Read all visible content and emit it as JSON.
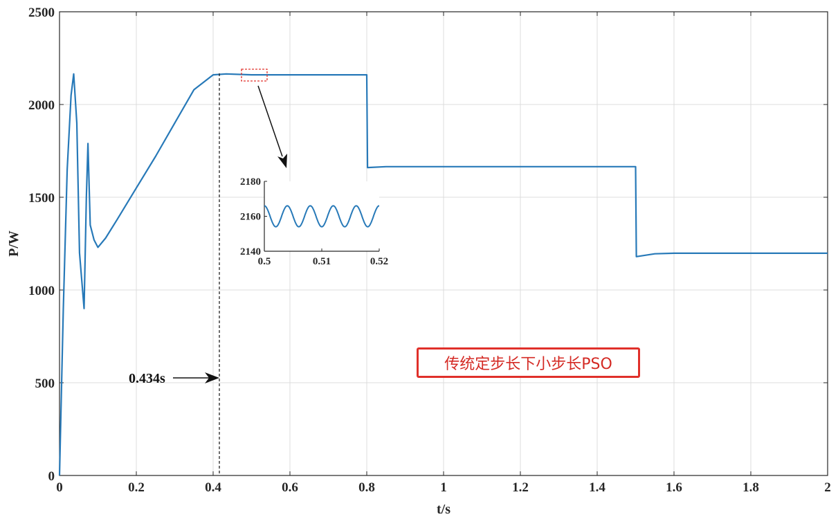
{
  "chart_data": {
    "type": "line",
    "xlabel": "t/s",
    "ylabel": "P/W",
    "xlim": [
      0,
      2
    ],
    "ylim": [
      0,
      2500
    ],
    "xticks": [
      "0",
      "0.2",
      "0.4",
      "0.6",
      "0.8",
      "1",
      "1.2",
      "1.4",
      "1.6",
      "1.8",
      "2"
    ],
    "yticks": [
      "0",
      "500",
      "1000",
      "1500",
      "2000",
      "2500"
    ],
    "grid": true,
    "series_color": "#2779b8",
    "series": [
      {
        "name": "传统定步长下小步长PSO",
        "x": [
          0,
          0.01,
          0.02,
          0.03,
          0.037,
          0.045,
          0.052,
          0.058,
          0.064,
          0.07,
          0.074,
          0.08,
          0.09,
          0.1,
          0.12,
          0.15,
          0.2,
          0.25,
          0.3,
          0.35,
          0.4,
          0.434,
          0.5,
          0.6,
          0.7,
          0.8,
          0.802,
          0.85,
          1.0,
          1.2,
          1.4,
          1.5,
          1.502,
          1.55,
          1.6,
          1.8,
          2.0
        ],
        "y": [
          0,
          900,
          1650,
          2050,
          2165,
          1900,
          1200,
          1050,
          900,
          1500,
          1790,
          1350,
          1270,
          1230,
          1280,
          1380,
          1550,
          1720,
          1900,
          2080,
          2160,
          2165,
          2160,
          2160,
          2160,
          2160,
          1660,
          1665,
          1665,
          1665,
          1665,
          1665,
          1180,
          1195,
          1198,
          1198,
          1198
        ]
      }
    ],
    "annotations": [
      {
        "text": "0.434s",
        "x": 0.434
      }
    ],
    "inset": {
      "xlim": [
        0.5,
        0.52
      ],
      "ylim": [
        2140,
        2180
      ],
      "xticks": [
        "0.5",
        "0.51",
        "0.52"
      ],
      "yticks": [
        "2140",
        "2160",
        "2180"
      ],
      "x": [
        0.5,
        0.52
      ],
      "mean": 2160,
      "amplitude": 6,
      "cycles": 5
    }
  },
  "legend": {
    "label": "传统定步长下小步长PSO",
    "border_color": "#e0302a",
    "text_color": "#d42a24"
  }
}
